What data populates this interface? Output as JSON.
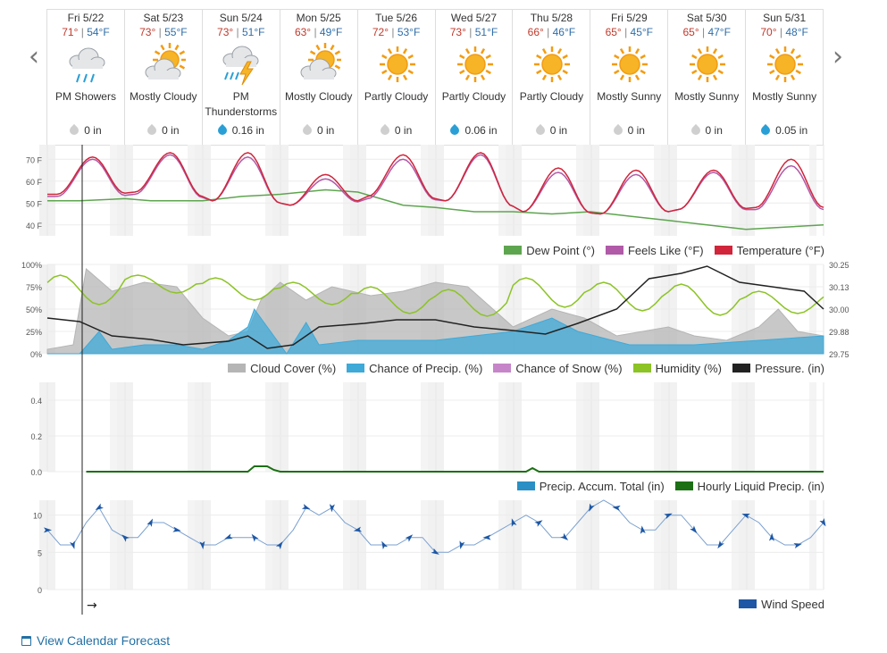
{
  "nav": {
    "prev_label": "‹",
    "next_label": "›"
  },
  "days": [
    {
      "name": "Fri 5/22",
      "hi": "71°",
      "lo": "54°F",
      "icon": "rain-cloud-icon",
      "condition": "PM Showers",
      "precip": "0 in",
      "precip_color": "#cfcfcf"
    },
    {
      "name": "Sat 5/23",
      "hi": "73°",
      "lo": "55°F",
      "icon": "sun-cloud-icon",
      "condition": "Mostly Cloudy",
      "precip": "0 in",
      "precip_color": "#cfcfcf"
    },
    {
      "name": "Sun 5/24",
      "hi": "73°",
      "lo": "51°F",
      "icon": "thunderstorm-icon",
      "condition": "PM Thunderstorms",
      "precip": "0.16 in",
      "precip_color": "#2a9fd6"
    },
    {
      "name": "Mon 5/25",
      "hi": "63°",
      "lo": "49°F",
      "icon": "sun-cloud-icon",
      "condition": "Mostly Cloudy",
      "precip": "0 in",
      "precip_color": "#cfcfcf"
    },
    {
      "name": "Tue 5/26",
      "hi": "72°",
      "lo": "53°F",
      "icon": "sun-icon",
      "condition": "Partly Cloudy",
      "precip": "0 in",
      "precip_color": "#cfcfcf"
    },
    {
      "name": "Wed 5/27",
      "hi": "73°",
      "lo": "51°F",
      "icon": "sun-icon",
      "condition": "Partly Cloudy",
      "precip": "0.06 in",
      "precip_color": "#2a9fd6"
    },
    {
      "name": "Thu 5/28",
      "hi": "66°",
      "lo": "46°F",
      "icon": "sun-icon",
      "condition": "Partly Cloudy",
      "precip": "0 in",
      "precip_color": "#cfcfcf"
    },
    {
      "name": "Fri 5/29",
      "hi": "65°",
      "lo": "45°F",
      "icon": "sun-icon",
      "condition": "Mostly Sunny",
      "precip": "0 in",
      "precip_color": "#cfcfcf"
    },
    {
      "name": "Sat 5/30",
      "hi": "65°",
      "lo": "47°F",
      "icon": "sun-icon",
      "condition": "Mostly Sunny",
      "precip": "0 in",
      "precip_color": "#cfcfcf"
    },
    {
      "name": "Sun 5/31",
      "hi": "70°",
      "lo": "48°F",
      "icon": "sun-icon",
      "condition": "Mostly Sunny",
      "precip": "0.05 in",
      "precip_color": "#2a9fd6"
    }
  ],
  "colors": {
    "temperature": "#d0253a",
    "feels_like": "#b05aa8",
    "dew_point": "#5ea54f",
    "cloud_cover": "#b5b5b5",
    "chance_precip": "#3fa9d8",
    "chance_snow": "#c685c9",
    "humidity": "#8cc325",
    "pressure": "#222222",
    "precip_accum": "#2a8fc4",
    "hourly_liquid": "#1c6f14",
    "wind": "#1d57a5"
  },
  "chart_data": [
    {
      "type": "line",
      "y_ticks": [
        "70 F",
        "60 F",
        "50 F",
        "40 F"
      ],
      "ylim": [
        35,
        75
      ],
      "hours": 240,
      "series": [
        {
          "name": "Dew Point (°)",
          "key": "dew_point",
          "points": [
            [
              0,
              51
            ],
            [
              10,
              51
            ],
            [
              24,
              52
            ],
            [
              32,
              51
            ],
            [
              48,
              51
            ],
            [
              60,
              53
            ],
            [
              72,
              54
            ],
            [
              86,
              56
            ],
            [
              96,
              55
            ],
            [
              110,
              49
            ],
            [
              120,
              48
            ],
            [
              132,
              46
            ],
            [
              144,
              46
            ],
            [
              156,
              45
            ],
            [
              168,
              46
            ],
            [
              180,
              44
            ],
            [
              192,
              42
            ],
            [
              204,
              40
            ],
            [
              216,
              38
            ],
            [
              228,
              39
            ],
            [
              240,
              40
            ]
          ]
        },
        {
          "name": "Feels Like (°F)",
          "key": "feels_like",
          "lows": [
            53,
            54,
            51,
            49,
            52,
            51,
            46,
            45,
            47,
            47
          ],
          "highs": [
            70,
            72,
            71,
            61,
            70,
            72,
            64,
            63,
            64,
            67
          ]
        },
        {
          "name": "Temperature (°F)",
          "key": "temperature",
          "lows": [
            54,
            55,
            51,
            49,
            53,
            51,
            46,
            45,
            47,
            48
          ],
          "highs": [
            71,
            73,
            73,
            63,
            72,
            73,
            66,
            65,
            65,
            70
          ]
        }
      ]
    },
    {
      "type": "area",
      "y_ticks_left": [
        "100%",
        "75%",
        "50%",
        "25%",
        "0%"
      ],
      "y_ticks_right": [
        "30.25",
        "30.13",
        "30.00",
        "29.88",
        "29.75"
      ],
      "ylim_left": [
        0,
        100
      ],
      "ylim_right": [
        29.75,
        30.25
      ],
      "series": [
        {
          "name": "Cloud Cover (%)",
          "key": "cloud_cover",
          "points": [
            [
              0,
              5
            ],
            [
              8,
              10
            ],
            [
              12,
              95
            ],
            [
              20,
              70
            ],
            [
              30,
              80
            ],
            [
              40,
              75
            ],
            [
              48,
              40
            ],
            [
              56,
              20
            ],
            [
              62,
              25
            ],
            [
              66,
              60
            ],
            [
              72,
              80
            ],
            [
              80,
              60
            ],
            [
              88,
              75
            ],
            [
              100,
              65
            ],
            [
              110,
              70
            ],
            [
              120,
              80
            ],
            [
              130,
              75
            ],
            [
              144,
              30
            ],
            [
              156,
              50
            ],
            [
              166,
              40
            ],
            [
              176,
              20
            ],
            [
              192,
              30
            ],
            [
              200,
              20
            ],
            [
              210,
              15
            ],
            [
              220,
              30
            ],
            [
              226,
              50
            ],
            [
              232,
              25
            ],
            [
              240,
              20
            ]
          ]
        },
        {
          "name": "Chance of Precip. (%)",
          "key": "chance_precip",
          "points": [
            [
              0,
              0
            ],
            [
              10,
              0
            ],
            [
              16,
              25
            ],
            [
              20,
              5
            ],
            [
              30,
              10
            ],
            [
              40,
              10
            ],
            [
              48,
              5
            ],
            [
              56,
              15
            ],
            [
              62,
              30
            ],
            [
              64,
              50
            ],
            [
              70,
              20
            ],
            [
              74,
              0
            ],
            [
              80,
              35
            ],
            [
              84,
              10
            ],
            [
              96,
              15
            ],
            [
              120,
              15
            ],
            [
              132,
              20
            ],
            [
              144,
              25
            ],
            [
              156,
              40
            ],
            [
              164,
              25
            ],
            [
              180,
              10
            ],
            [
              200,
              10
            ],
            [
              220,
              15
            ],
            [
              240,
              20
            ]
          ]
        },
        {
          "name": "Chance of Snow (%)",
          "key": "chance_snow",
          "points": []
        },
        {
          "name": "Humidity (%)",
          "key": "humidity",
          "troughs": [
            55,
            68,
            60,
            55,
            45,
            42,
            52,
            48,
            43,
            45
          ],
          "peaks": [
            88,
            88,
            85,
            80,
            75,
            72,
            85,
            80,
            78,
            70
          ]
        },
        {
          "name": "Pressure. (in)",
          "key": "pressure",
          "points": [
            [
              0,
              29.95
            ],
            [
              10,
              29.93
            ],
            [
              20,
              29.85
            ],
            [
              32,
              29.83
            ],
            [
              42,
              29.8
            ],
            [
              56,
              29.82
            ],
            [
              62,
              29.85
            ],
            [
              68,
              29.78
            ],
            [
              76,
              29.8
            ],
            [
              84,
              29.9
            ],
            [
              98,
              29.92
            ],
            [
              108,
              29.94
            ],
            [
              120,
              29.94
            ],
            [
              132,
              29.9
            ],
            [
              144,
              29.88
            ],
            [
              154,
              29.86
            ],
            [
              164,
              29.92
            ],
            [
              176,
              30.0
            ],
            [
              186,
              30.17
            ],
            [
              196,
              30.2
            ],
            [
              204,
              30.24
            ],
            [
              214,
              30.15
            ],
            [
              226,
              30.12
            ],
            [
              234,
              30.1
            ],
            [
              240,
              30.0
            ]
          ]
        }
      ]
    },
    {
      "type": "line",
      "y_ticks": [
        "0.4",
        "0.2",
        "0.0"
      ],
      "ylim": [
        0,
        0.5
      ],
      "series": [
        {
          "name": "Precip. Accum. Total (in)",
          "key": "precip_accum",
          "points": []
        },
        {
          "name": "Hourly Liquid Precip. (in)",
          "key": "hourly_liquid",
          "points": [
            [
              0,
              0
            ],
            [
              62,
              0
            ],
            [
              64,
              0.03
            ],
            [
              68,
              0.03
            ],
            [
              70,
              0.01
            ],
            [
              72,
              0
            ],
            [
              148,
              0
            ],
            [
              150,
              0.02
            ],
            [
              152,
              0
            ],
            [
              240,
              0
            ]
          ]
        }
      ]
    },
    {
      "type": "line",
      "y_ticks": [
        "10",
        "5",
        "0"
      ],
      "ylim": [
        0,
        12
      ],
      "series": [
        {
          "name": "Wind Speed",
          "key": "wind",
          "points": [
            [
              0,
              8
            ],
            [
              4,
              6
            ],
            [
              8,
              6
            ],
            [
              12,
              9
            ],
            [
              16,
              11
            ],
            [
              20,
              8
            ],
            [
              24,
              7
            ],
            [
              28,
              7
            ],
            [
              32,
              9
            ],
            [
              36,
              9
            ],
            [
              40,
              8
            ],
            [
              44,
              7
            ],
            [
              48,
              6
            ],
            [
              52,
              6
            ],
            [
              56,
              7
            ],
            [
              60,
              7
            ],
            [
              64,
              7
            ],
            [
              68,
              6
            ],
            [
              72,
              6
            ],
            [
              76,
              8
            ],
            [
              80,
              11
            ],
            [
              84,
              10
            ],
            [
              88,
              11
            ],
            [
              92,
              9
            ],
            [
              96,
              8
            ],
            [
              100,
              6
            ],
            [
              104,
              6
            ],
            [
              108,
              6
            ],
            [
              112,
              7
            ],
            [
              116,
              7
            ],
            [
              120,
              5
            ],
            [
              124,
              5
            ],
            [
              128,
              6
            ],
            [
              132,
              6
            ],
            [
              136,
              7
            ],
            [
              140,
              8
            ],
            [
              144,
              9
            ],
            [
              148,
              10
            ],
            [
              152,
              9
            ],
            [
              156,
              7
            ],
            [
              160,
              7
            ],
            [
              164,
              9
            ],
            [
              168,
              11
            ],
            [
              172,
              12
            ],
            [
              176,
              11
            ],
            [
              180,
              9
            ],
            [
              184,
              8
            ],
            [
              188,
              8
            ],
            [
              192,
              10
            ],
            [
              196,
              10
            ],
            [
              200,
              8
            ],
            [
              204,
              6
            ],
            [
              208,
              6
            ],
            [
              212,
              8
            ],
            [
              216,
              10
            ],
            [
              220,
              9
            ],
            [
              224,
              7
            ],
            [
              228,
              6
            ],
            [
              232,
              6
            ],
            [
              236,
              7
            ],
            [
              240,
              9
            ]
          ]
        }
      ]
    }
  ],
  "legends": {
    "temp": [
      "Dew Point (°)",
      "Feels Like (°F)",
      "Temperature (°F)"
    ],
    "cloud": [
      "Cloud Cover (%)",
      "Chance of Precip. (%)",
      "Chance of Snow (%)",
      "Humidity (%)",
      "Pressure. (in)"
    ],
    "precip": [
      "Precip. Accum. Total (in)",
      "Hourly Liquid Precip. (in)"
    ],
    "wind": [
      "Wind Speed"
    ]
  },
  "now_arrow": "→",
  "calendar_link": "View Calendar Forecast"
}
